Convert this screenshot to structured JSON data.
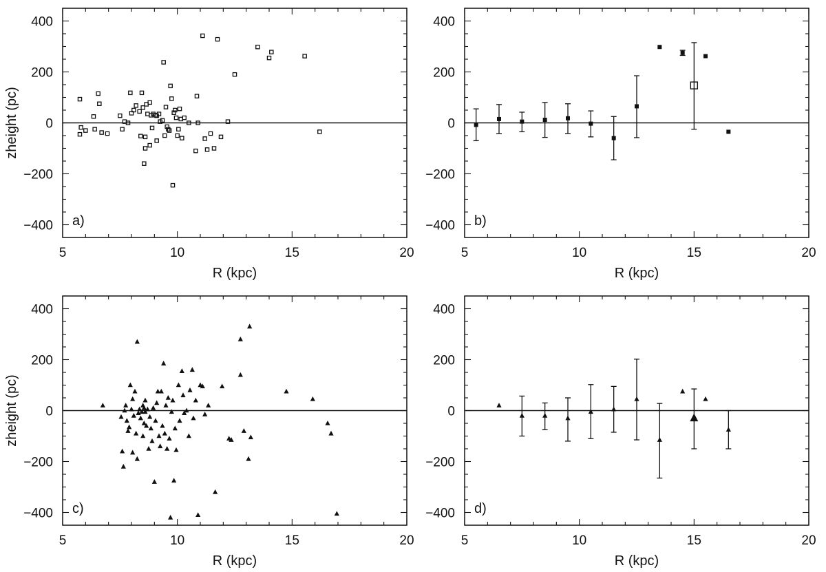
{
  "figure": {
    "xlabel": "R (kpc)",
    "ylabel": "zheight (pc)"
  },
  "chart_data": [
    {
      "panel": "a)",
      "type": "scatter",
      "marker": "open-square",
      "xlabel": "R (kpc)",
      "ylabel": "zheight (pc)",
      "xlim": [
        5,
        20
      ],
      "ylim": [
        -450,
        450
      ],
      "xticks": [
        "5",
        "10",
        "15",
        "20"
      ],
      "yticks": [
        "400",
        "200",
        "0",
        "−200",
        "−400"
      ],
      "zero_line": true,
      "points": [
        [
          5.75,
          93
        ],
        [
          5.8,
          -18
        ],
        [
          5.75,
          -45
        ],
        [
          6.0,
          -30
        ],
        [
          6.35,
          25
        ],
        [
          6.4,
          -25
        ],
        [
          6.55,
          115
        ],
        [
          6.6,
          75
        ],
        [
          6.7,
          -38
        ],
        [
          6.95,
          -42
        ],
        [
          7.5,
          28
        ],
        [
          7.6,
          -25
        ],
        [
          7.7,
          5
        ],
        [
          7.85,
          0
        ],
        [
          7.95,
          118
        ],
        [
          8.0,
          38
        ],
        [
          8.1,
          50
        ],
        [
          8.2,
          68
        ],
        [
          8.35,
          45
        ],
        [
          8.4,
          -52
        ],
        [
          8.45,
          118
        ],
        [
          8.5,
          60
        ],
        [
          8.55,
          -160
        ],
        [
          8.6,
          -100
        ],
        [
          8.6,
          -55
        ],
        [
          8.65,
          73
        ],
        [
          8.7,
          35
        ],
        [
          8.8,
          80
        ],
        [
          8.8,
          -88
        ],
        [
          8.85,
          30
        ],
        [
          8.9,
          -20
        ],
        [
          8.95,
          35
        ],
        [
          9.05,
          30
        ],
        [
          9.1,
          -70
        ],
        [
          9.1,
          28
        ],
        [
          9.2,
          35
        ],
        [
          9.25,
          5
        ],
        [
          9.35,
          10
        ],
        [
          9.4,
          238
        ],
        [
          9.45,
          -50
        ],
        [
          9.5,
          62
        ],
        [
          9.55,
          -15
        ],
        [
          9.6,
          -25
        ],
        [
          9.65,
          -30
        ],
        [
          9.7,
          145
        ],
        [
          9.75,
          95
        ],
        [
          9.8,
          -245
        ],
        [
          9.85,
          40
        ],
        [
          9.9,
          50
        ],
        [
          9.95,
          20
        ],
        [
          10.0,
          -50
        ],
        [
          10.05,
          -25
        ],
        [
          10.1,
          55
        ],
        [
          10.15,
          15
        ],
        [
          10.2,
          -60
        ],
        [
          10.3,
          20
        ],
        [
          10.5,
          0
        ],
        [
          10.8,
          -110
        ],
        [
          10.85,
          105
        ],
        [
          10.9,
          0
        ],
        [
          11.1,
          342
        ],
        [
          11.2,
          -62
        ],
        [
          11.3,
          -105
        ],
        [
          11.45,
          -42
        ],
        [
          11.6,
          -100
        ],
        [
          11.75,
          328
        ],
        [
          11.9,
          -55
        ],
        [
          12.2,
          5
        ],
        [
          12.5,
          190
        ],
        [
          13.5,
          298
        ],
        [
          14.0,
          255
        ],
        [
          14.1,
          278
        ],
        [
          15.55,
          262
        ],
        [
          16.2,
          -35
        ]
      ]
    },
    {
      "panel": "b)",
      "type": "scatter-errorbars",
      "marker": "filled-square",
      "xlabel": "R (kpc)",
      "ylabel": "",
      "xlim": [
        5,
        20
      ],
      "ylim": [
        -450,
        450
      ],
      "xticks": [
        "5",
        "10",
        "15",
        "20"
      ],
      "yticks": [
        "400",
        "200",
        "0",
        "−200",
        "−400"
      ],
      "zero_line": true,
      "points": [
        {
          "x": 5.5,
          "y": -8,
          "lo": -70,
          "hi": 55
        },
        {
          "x": 6.5,
          "y": 15,
          "lo": -42,
          "hi": 72
        },
        {
          "x": 7.5,
          "y": 5,
          "lo": -35,
          "hi": 42
        },
        {
          "x": 8.5,
          "y": 12,
          "lo": -57,
          "hi": 80
        },
        {
          "x": 9.5,
          "y": 18,
          "lo": -42,
          "hi": 75
        },
        {
          "x": 10.5,
          "y": -3,
          "lo": -55,
          "hi": 47
        },
        {
          "x": 11.5,
          "y": -60,
          "lo": -145,
          "hi": 25
        },
        {
          "x": 12.5,
          "y": 65,
          "lo": -58,
          "hi": 185
        },
        {
          "x": 13.5,
          "y": 298
        },
        {
          "x": 14.5,
          "y": 275,
          "lo": 265,
          "hi": 285
        },
        {
          "x": 15.0,
          "y": 147,
          "lo": -25,
          "hi": 315,
          "marker": "open-square-large"
        },
        {
          "x": 15.5,
          "y": 262
        },
        {
          "x": 16.5,
          "y": -35
        }
      ]
    },
    {
      "panel": "c)",
      "type": "scatter",
      "marker": "filled-triangle",
      "xlabel": "R (kpc)",
      "ylabel": "zheight (pc)",
      "xlim": [
        5,
        20
      ],
      "ylim": [
        -450,
        450
      ],
      "xticks": [
        "5",
        "10",
        "15",
        "20"
      ],
      "yticks": [
        "400",
        "200",
        "0",
        "−200",
        "−400"
      ],
      "zero_line": true,
      "points": [
        [
          6.75,
          20
        ],
        [
          7.55,
          -25
        ],
        [
          7.6,
          -160
        ],
        [
          7.65,
          -220
        ],
        [
          7.7,
          0
        ],
        [
          7.75,
          20
        ],
        [
          7.8,
          -40
        ],
        [
          7.85,
          -80
        ],
        [
          7.9,
          -65
        ],
        [
          7.95,
          100
        ],
        [
          8.0,
          5
        ],
        [
          8.05,
          45
        ],
        [
          8.05,
          -165
        ],
        [
          8.1,
          -20
        ],
        [
          8.15,
          75
        ],
        [
          8.2,
          -90
        ],
        [
          8.25,
          270
        ],
        [
          8.25,
          -190
        ],
        [
          8.3,
          -10
        ],
        [
          8.35,
          5
        ],
        [
          8.4,
          -30
        ],
        [
          8.45,
          -5
        ],
        [
          8.5,
          20
        ],
        [
          8.5,
          -100
        ],
        [
          8.55,
          10
        ],
        [
          8.55,
          -50
        ],
        [
          8.6,
          40
        ],
        [
          8.6,
          -5
        ],
        [
          8.65,
          -60
        ],
        [
          8.7,
          5
        ],
        [
          8.75,
          -150
        ],
        [
          8.8,
          -25
        ],
        [
          8.85,
          -70
        ],
        [
          8.9,
          -120
        ],
        [
          8.95,
          10
        ],
        [
          9.0,
          -280
        ],
        [
          9.05,
          -40
        ],
        [
          9.1,
          30
        ],
        [
          9.15,
          75
        ],
        [
          9.2,
          -100
        ],
        [
          9.25,
          -140
        ],
        [
          9.3,
          75
        ],
        [
          9.35,
          -60
        ],
        [
          9.4,
          185
        ],
        [
          9.45,
          -90
        ],
        [
          9.5,
          20
        ],
        [
          9.55,
          -150
        ],
        [
          9.6,
          50
        ],
        [
          9.65,
          -110
        ],
        [
          9.7,
          -420
        ],
        [
          9.75,
          -5
        ],
        [
          9.8,
          40
        ],
        [
          9.85,
          -275
        ],
        [
          9.9,
          -70
        ],
        [
          9.95,
          -155
        ],
        [
          10.05,
          100
        ],
        [
          10.1,
          -40
        ],
        [
          10.2,
          155
        ],
        [
          10.25,
          60
        ],
        [
          10.3,
          -10
        ],
        [
          10.4,
          0
        ],
        [
          10.5,
          -100
        ],
        [
          10.55,
          80
        ],
        [
          10.65,
          160
        ],
        [
          10.7,
          -30
        ],
        [
          10.8,
          40
        ],
        [
          10.9,
          -410
        ],
        [
          11.0,
          100
        ],
        [
          11.1,
          95
        ],
        [
          11.2,
          -15
        ],
        [
          11.35,
          20
        ],
        [
          11.65,
          -320
        ],
        [
          11.95,
          95
        ],
        [
          12.25,
          -110
        ],
        [
          12.35,
          -115
        ],
        [
          12.75,
          280
        ],
        [
          12.75,
          140
        ],
        [
          12.9,
          -80
        ],
        [
          13.1,
          -190
        ],
        [
          13.15,
          330
        ],
        [
          13.2,
          -105
        ],
        [
          14.75,
          75
        ],
        [
          15.9,
          45
        ],
        [
          16.55,
          -50
        ],
        [
          16.7,
          -90
        ],
        [
          16.95,
          -405
        ]
      ]
    },
    {
      "panel": "d)",
      "type": "scatter-errorbars",
      "marker": "filled-triangle",
      "xlabel": "R (kpc)",
      "ylabel": "",
      "xlim": [
        5,
        20
      ],
      "ylim": [
        -450,
        450
      ],
      "xticks": [
        "5",
        "10",
        "15",
        "20"
      ],
      "yticks": [
        "400",
        "200",
        "0",
        "−200",
        "−400"
      ],
      "zero_line": true,
      "points": [
        {
          "x": 6.5,
          "y": 20
        },
        {
          "x": 7.5,
          "y": -20,
          "lo": -100,
          "hi": 57
        },
        {
          "x": 8.5,
          "y": -20,
          "lo": -75,
          "hi": 30
        },
        {
          "x": 9.5,
          "y": -30,
          "lo": -120,
          "hi": 50
        },
        {
          "x": 10.5,
          "y": -5,
          "lo": -110,
          "hi": 102
        },
        {
          "x": 11.5,
          "y": 5,
          "lo": -85,
          "hi": 95
        },
        {
          "x": 12.5,
          "y": 45,
          "lo": -115,
          "hi": 202
        },
        {
          "x": 13.5,
          "y": -115,
          "lo": -265,
          "hi": 28
        },
        {
          "x": 14.5,
          "y": 75
        },
        {
          "x": 15.0,
          "y": -30,
          "lo": -150,
          "hi": 85,
          "marker": "filled-triangle-large"
        },
        {
          "x": 15.5,
          "y": 45
        },
        {
          "x": 16.5,
          "y": -75,
          "lo": -150,
          "hi": 0
        }
      ]
    }
  ]
}
